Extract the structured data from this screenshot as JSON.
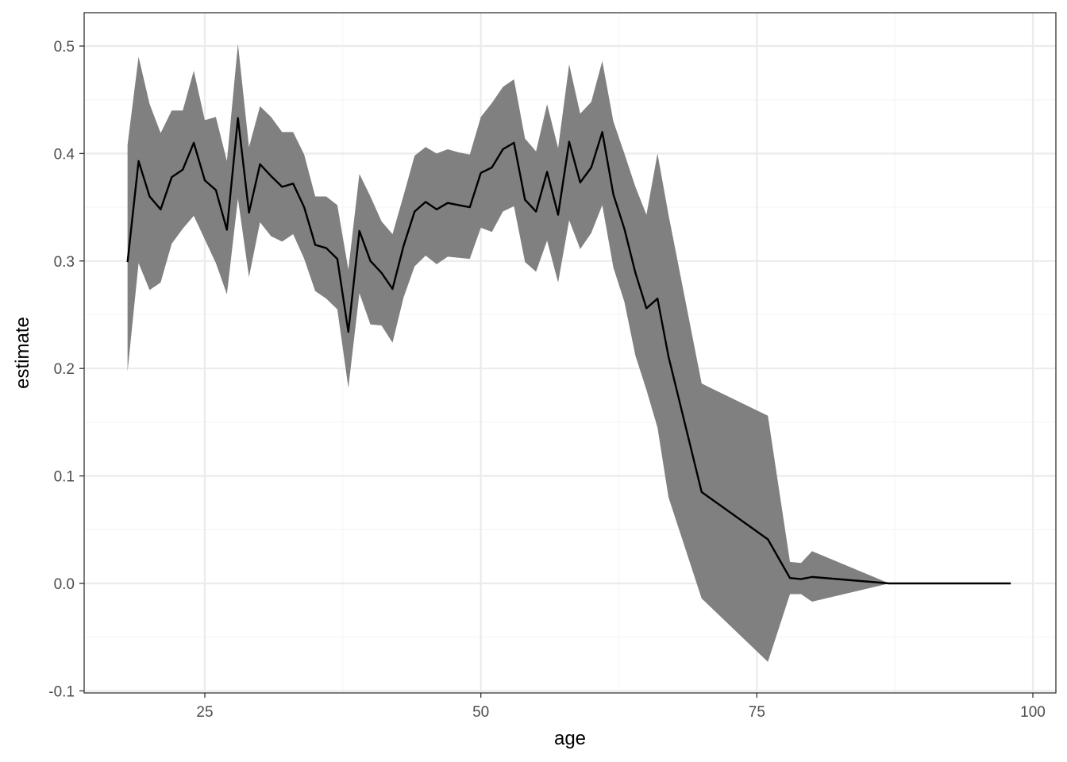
{
  "chart_data": {
    "type": "line",
    "title": "",
    "xlabel": "age",
    "ylabel": "estimate",
    "xlim": [
      13,
      101
    ],
    "ylim": [
      -0.1,
      0.5
    ],
    "x_ticks": [
      25,
      50,
      75,
      100
    ],
    "x_tick_labels": [
      "25",
      "50",
      "75",
      "100"
    ],
    "y_ticks": [
      -0.1,
      0.0,
      0.1,
      0.2,
      0.3,
      0.4,
      0.5
    ],
    "y_tick_labels": [
      "-0.1",
      "0.0",
      "0.1",
      "0.2",
      "0.3",
      "0.4",
      "0.5"
    ],
    "grid": true,
    "legend": "none",
    "colors": {
      "line": "#000000",
      "ribbon": "#808080",
      "panel_border": "#333333",
      "grid_major": "#ebebeb",
      "grid_minor": "#f5f5f5"
    },
    "series": [
      {
        "type": "ribbon-line",
        "x": [
          18,
          19,
          20,
          21,
          22,
          23,
          24,
          25,
          26,
          27,
          28,
          29,
          30,
          31,
          32,
          33,
          34,
          35,
          36,
          37,
          38,
          39,
          40,
          41,
          42,
          43,
          44,
          45,
          46,
          47,
          48,
          49,
          50,
          51,
          52,
          53,
          54,
          55,
          56,
          57,
          58,
          59,
          60,
          61,
          62,
          63,
          64,
          65,
          66,
          67,
          70,
          76,
          78,
          79,
          80,
          87,
          98
        ],
        "y": [
          0.299,
          0.393,
          0.36,
          0.348,
          0.378,
          0.385,
          0.41,
          0.375,
          0.366,
          0.329,
          0.433,
          0.345,
          0.39,
          0.379,
          0.369,
          0.372,
          0.35,
          0.315,
          0.312,
          0.302,
          0.234,
          0.328,
          0.3,
          0.289,
          0.274,
          0.314,
          0.346,
          0.355,
          0.348,
          0.354,
          0.352,
          0.35,
          0.382,
          0.387,
          0.404,
          0.41,
          0.357,
          0.346,
          0.383,
          0.343,
          0.411,
          0.373,
          0.387,
          0.42,
          0.362,
          0.33,
          0.289,
          0.256,
          0.265,
          0.211,
          0.085,
          0.041,
          0.005,
          0.004,
          0.006,
          0.0,
          0.0
        ],
        "lower": [
          0.197,
          0.298,
          0.273,
          0.28,
          0.316,
          0.33,
          0.342,
          0.32,
          0.298,
          0.269,
          0.358,
          0.285,
          0.336,
          0.323,
          0.318,
          0.325,
          0.302,
          0.272,
          0.265,
          0.255,
          0.182,
          0.27,
          0.241,
          0.24,
          0.224,
          0.266,
          0.295,
          0.305,
          0.297,
          0.304,
          0.303,
          0.302,
          0.331,
          0.327,
          0.346,
          0.351,
          0.299,
          0.29,
          0.319,
          0.28,
          0.338,
          0.311,
          0.326,
          0.352,
          0.294,
          0.262,
          0.212,
          0.18,
          0.145,
          0.08,
          -0.014,
          -0.073,
          -0.01,
          -0.01,
          -0.017,
          0.0,
          0.0
        ],
        "upper": [
          0.408,
          0.49,
          0.446,
          0.419,
          0.44,
          0.44,
          0.477,
          0.431,
          0.434,
          0.393,
          0.502,
          0.406,
          0.444,
          0.434,
          0.42,
          0.42,
          0.399,
          0.36,
          0.36,
          0.352,
          0.292,
          0.381,
          0.36,
          0.337,
          0.325,
          0.361,
          0.398,
          0.406,
          0.4,
          0.404,
          0.401,
          0.399,
          0.434,
          0.447,
          0.462,
          0.469,
          0.414,
          0.402,
          0.446,
          0.405,
          0.483,
          0.437,
          0.448,
          0.486,
          0.43,
          0.4,
          0.369,
          0.343,
          0.4,
          0.343,
          0.186,
          0.156,
          0.02,
          0.019,
          0.03,
          0.0,
          0.0
        ]
      }
    ]
  }
}
